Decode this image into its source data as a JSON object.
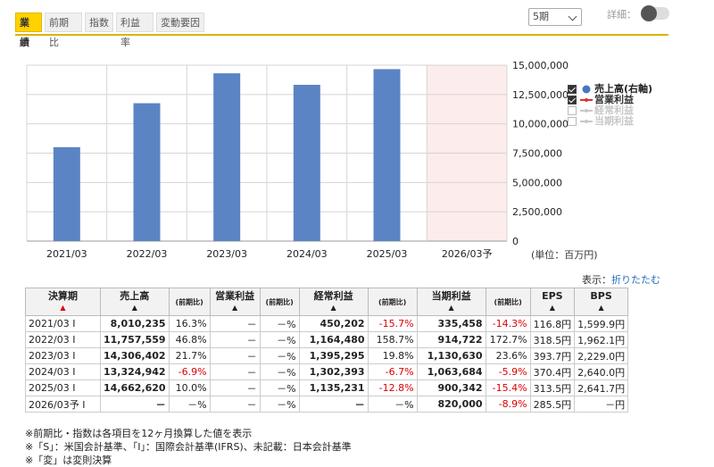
{
  "tabs": [
    "業績",
    "前期比",
    "指数",
    "利益率",
    "変動要因"
  ],
  "period_select": "5期",
  "detail_label": "詳細：",
  "chart_data": {
    "type": "bar",
    "categories": [
      "2021/03",
      "2022/03",
      "2023/03",
      "2024/03",
      "2025/03",
      "2026/03予"
    ],
    "series": [
      {
        "name": "売上高(右軸)",
        "values": [
          8010235,
          11757559,
          14306402,
          13324942,
          14662620,
          null
        ],
        "color": "#5b84c4"
      }
    ],
    "forecast_category": "2026/03予",
    "forecast_shade_color": "#fdecec",
    "y_ticks": [
      "0",
      "2,500,000",
      "5,000,000",
      "7,500,000",
      "10,000,000",
      "12,500,000",
      "15,000,000"
    ],
    "ylim": [
      0,
      15000000
    ],
    "grid": true,
    "legend_position": "right",
    "unit_label": "(単位：百万円)"
  },
  "legend": [
    {
      "label": "売上高(右軸)",
      "checked": true,
      "marker": "circle",
      "color": "#4a76c0"
    },
    {
      "label": "営業利益",
      "checked": true,
      "marker": "line",
      "color": "#e03030"
    },
    {
      "label": "経常利益",
      "checked": false,
      "marker": "line",
      "color": "#c8c8c8"
    },
    {
      "label": "当期利益",
      "checked": false,
      "marker": "line",
      "color": "#c8c8c8"
    }
  ],
  "display": {
    "label": "表示：",
    "link": "折りたたむ"
  },
  "table": {
    "headers": [
      "決算期",
      "売上高",
      "(前期比)",
      "営業利益",
      "(前期比)",
      "経常利益",
      "(前期比)",
      "当期利益",
      "(前期比)",
      "EPS",
      "BPS"
    ],
    "sort_arrow": "▲",
    "rows": [
      [
        "2021/03 I",
        "8,010,235",
        "16.3%",
        "－",
        "－%",
        "450,202",
        "-15.7%",
        "335,458",
        "-14.3%",
        "116.8円",
        "1,599.9円"
      ],
      [
        "2022/03 I",
        "11,757,559",
        "46.8%",
        "－",
        "－%",
        "1,164,480",
        "158.7%",
        "914,722",
        "172.7%",
        "318.5円",
        "1,962.1円"
      ],
      [
        "2023/03 I",
        "14,306,402",
        "21.7%",
        "－",
        "－%",
        "1,395,295",
        "19.8%",
        "1,130,630",
        "23.6%",
        "393.7円",
        "2,229.0円"
      ],
      [
        "2024/03 I",
        "13,324,942",
        "-6.9%",
        "－",
        "－%",
        "1,302,393",
        "-6.7%",
        "1,063,684",
        "-5.9%",
        "370.4円",
        "2,640.0円"
      ],
      [
        "2025/03 I",
        "14,662,620",
        "10.0%",
        "－",
        "－%",
        "1,135,231",
        "-12.8%",
        "900,342",
        "-15.4%",
        "313.5円",
        "2,641.7円"
      ],
      [
        "2026/03予 I",
        "－",
        "－%",
        "－",
        "－%",
        "－",
        "－%",
        "820,000",
        "-8.9%",
        "285.5円",
        "－円"
      ]
    ]
  },
  "notes": [
    "※前期比・指数は各項目を12ヶ月換算した値を表示",
    "※「S」：米国会計基準、「I」：国際会計基準(IFRS)、未記載：日本会計基準",
    "※「変」は変則決算"
  ]
}
